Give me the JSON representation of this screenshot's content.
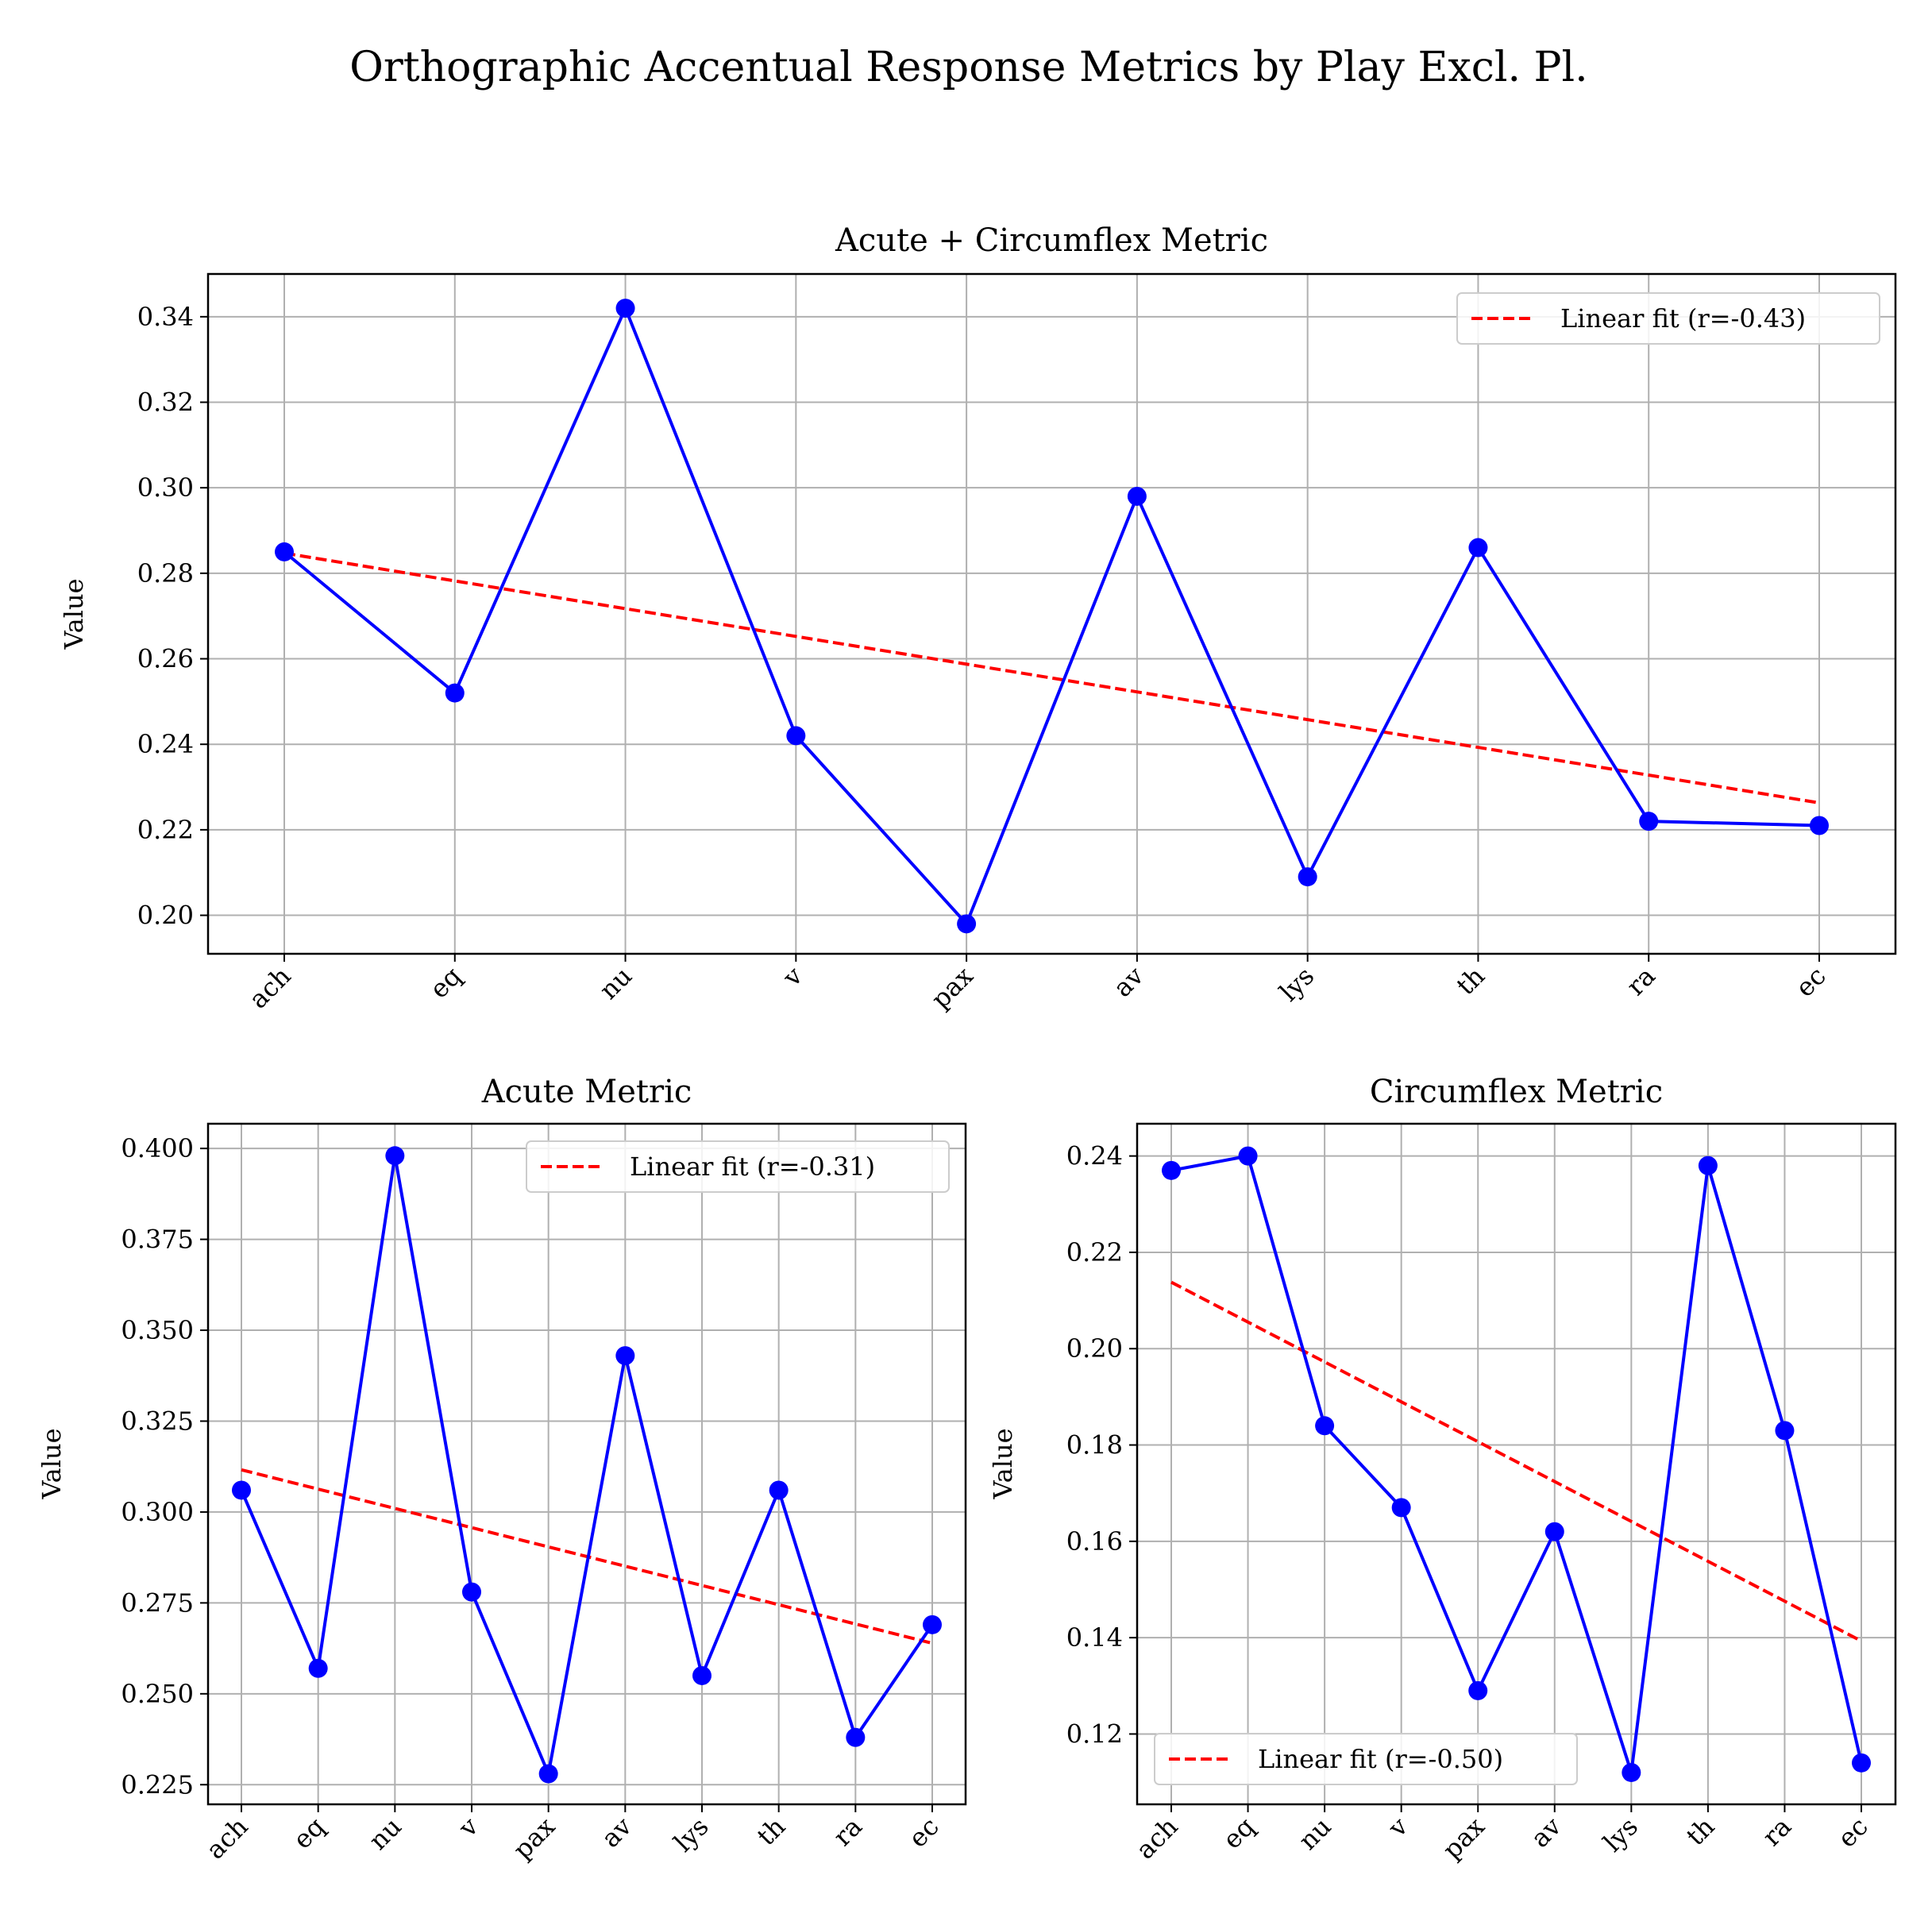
{
  "figure": {
    "title": "Orthographic Accentual Response Metrics by Play Excl. Pl."
  },
  "colors": {
    "series": "#0000ff",
    "fit": "#ff0000",
    "grid": "#b0b0b0",
    "axes": "#000000"
  },
  "chart_data": [
    {
      "type": "line",
      "title": "Acute + Circumflex Metric",
      "xlabel": "",
      "ylabel": "Value",
      "categories": [
        "ach",
        "eq",
        "nu",
        "v",
        "pax",
        "av",
        "lys",
        "th",
        "ra",
        "ec"
      ],
      "values": [
        0.285,
        0.252,
        0.342,
        0.242,
        0.198,
        0.298,
        0.209,
        0.286,
        0.222,
        0.221
      ],
      "fit": {
        "label": "Linear fit (r=-0.43)",
        "start": 0.2847,
        "end": 0.2263
      },
      "yticks": [
        0.2,
        0.22,
        0.24,
        0.26,
        0.28,
        0.3,
        0.32,
        0.34
      ],
      "ytick_labels": [
        "0.20",
        "0.22",
        "0.24",
        "0.26",
        "0.28",
        "0.30",
        "0.32",
        "0.34"
      ],
      "ylim": [
        0.191,
        0.35
      ],
      "grid": true,
      "legend": "upper right"
    },
    {
      "type": "line",
      "title": "Acute Metric",
      "xlabel": "",
      "ylabel": "Value",
      "categories": [
        "ach",
        "eq",
        "nu",
        "v",
        "pax",
        "av",
        "lys",
        "th",
        "ra",
        "ec"
      ],
      "values": [
        0.306,
        0.257,
        0.398,
        0.278,
        0.228,
        0.343,
        0.255,
        0.306,
        0.238,
        0.269
      ],
      "fit": {
        "label": "Linear fit (r=-0.31)",
        "start": 0.3116,
        "end": 0.2639
      },
      "yticks": [
        0.225,
        0.25,
        0.275,
        0.3,
        0.325,
        0.35,
        0.375,
        0.4
      ],
      "ytick_labels": [
        "0.225",
        "0.250",
        "0.275",
        "0.300",
        "0.325",
        "0.350",
        "0.375",
        "0.400"
      ],
      "ylim": [
        0.2196,
        0.4068
      ],
      "grid": true,
      "legend": "upper right"
    },
    {
      "type": "line",
      "title": "Circumflex Metric",
      "xlabel": "",
      "ylabel": "Value",
      "categories": [
        "ach",
        "eq",
        "nu",
        "v",
        "pax",
        "av",
        "lys",
        "th",
        "ra",
        "ec"
      ],
      "values": [
        0.237,
        0.24,
        0.184,
        0.167,
        0.129,
        0.162,
        0.112,
        0.238,
        0.183,
        0.114
      ],
      "fit": {
        "label": "Linear fit (r=-0.50)",
        "start": 0.2138,
        "end": 0.1393
      },
      "yticks": [
        0.12,
        0.14,
        0.16,
        0.18,
        0.2,
        0.22,
        0.24
      ],
      "ytick_labels": [
        "0.12",
        "0.14",
        "0.16",
        "0.18",
        "0.20",
        "0.22",
        "0.24"
      ],
      "ylim": [
        0.1054,
        0.2467
      ],
      "grid": true,
      "legend": "lower left"
    }
  ]
}
